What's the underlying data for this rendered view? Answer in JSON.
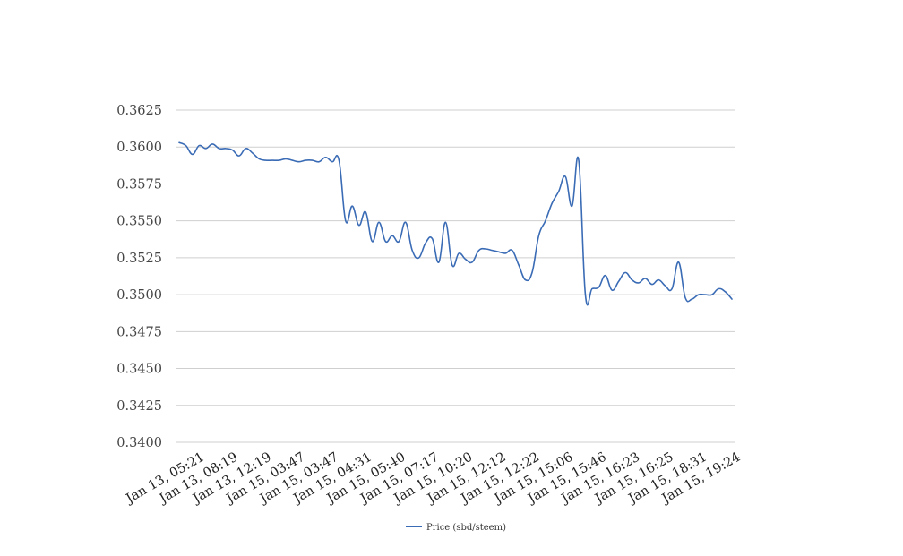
{
  "chart_data": {
    "type": "line",
    "title": "",
    "xlabel": "",
    "ylabel": "",
    "ylim": [
      0.34,
      0.3625
    ],
    "yticks": [
      "0.3400",
      "0.3425",
      "0.3450",
      "0.3475",
      "0.3500",
      "0.3525",
      "0.3550",
      "0.3575",
      "0.3600",
      "0.3625"
    ],
    "grid": true,
    "legend_position": "bottom",
    "xtick_labels": [
      "Jan 13, 05:21",
      "Jan 13, 08:19",
      "Jan 13, 12:19",
      "Jan 15, 03:47",
      "Jan 15, 03:47",
      "Jan 15, 04:31",
      "Jan 15, 05:40",
      "Jan 15, 07:17",
      "Jan 15, 10:20",
      "Jan 15, 12:12",
      "Jan 15, 12:22",
      "Jan 15, 15:06",
      "Jan 15, 15:46",
      "Jan 15, 16:23",
      "Jan 15, 16:25",
      "Jan 15, 18:31",
      "Jan 15, 19:24"
    ],
    "series": [
      {
        "name": "Price (sbd/steem)",
        "color": "#3a6bb5",
        "values": [
          0.3603,
          0.3601,
          0.3595,
          0.3601,
          0.3599,
          0.3602,
          0.3599,
          0.3599,
          0.3598,
          0.3594,
          0.3599,
          0.3596,
          0.3592,
          0.3591,
          0.3591,
          0.3591,
          0.3592,
          0.3591,
          0.359,
          0.3591,
          0.3591,
          0.359,
          0.3593,
          0.359,
          0.3591,
          0.355,
          0.356,
          0.3547,
          0.3556,
          0.3536,
          0.3549,
          0.3536,
          0.354,
          0.3536,
          0.3549,
          0.353,
          0.3525,
          0.3535,
          0.3538,
          0.3522,
          0.3549,
          0.352,
          0.3528,
          0.3524,
          0.3522,
          0.353,
          0.3531,
          0.353,
          0.3529,
          0.3528,
          0.353,
          0.352,
          0.351,
          0.3515,
          0.354,
          0.355,
          0.3562,
          0.357,
          0.358,
          0.356,
          0.3591,
          0.35,
          0.3504,
          0.3505,
          0.3513,
          0.3503,
          0.3509,
          0.3515,
          0.351,
          0.3508,
          0.3511,
          0.3507,
          0.351,
          0.3506,
          0.3504,
          0.3522,
          0.3498,
          0.3497,
          0.35,
          0.35,
          0.35,
          0.3504,
          0.3502,
          0.3497
        ]
      }
    ]
  }
}
